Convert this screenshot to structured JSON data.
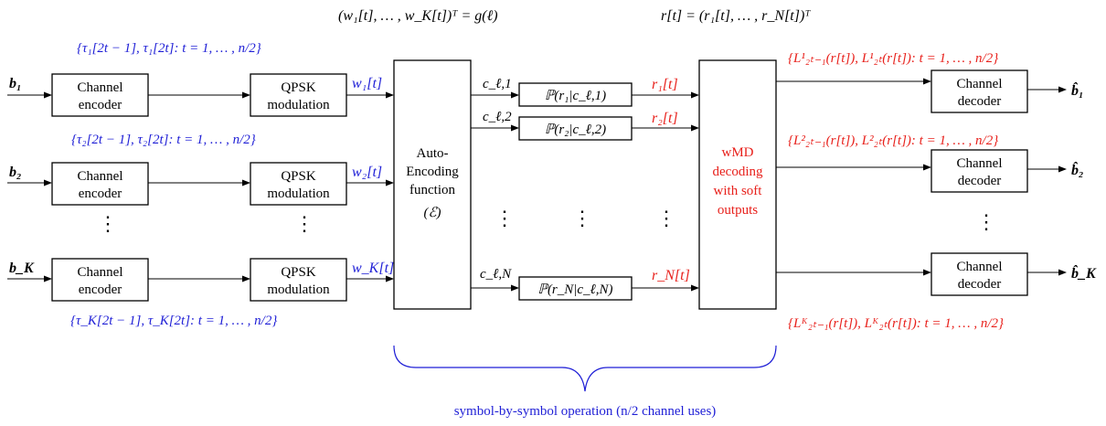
{
  "top_equations": {
    "g_eq": "(w₁[t], … , w_K[t])ᵀ = g(ℓ)",
    "r_eq": "r[t] = (r₁[t], … , r_N[t])ᵀ"
  },
  "inputs": [
    {
      "label": "b₁",
      "tau": "{τ₁[2t − 1], τ₁[2t]: t = 1, … , n/2}",
      "w": "w₁[t]"
    },
    {
      "label": "b₂",
      "tau": "{τ₂[2t − 1], τ₂[2t]: t = 1, … , n/2}",
      "w": "w₂[t]"
    },
    {
      "label": "b_K",
      "tau": "{τ_K[2t − 1], τ_K[2t]: t = 1, … , n/2}",
      "w": "w_K[t]"
    }
  ],
  "channel_encoder_label": [
    "Channel",
    "encoder"
  ],
  "qpsk_label": [
    "QPSK",
    "modulation"
  ],
  "auto_encoding_label": [
    "Auto-",
    "Encoding",
    "function",
    "(ℰ)"
  ],
  "codewords": [
    "c_ℓ,1",
    "c_ℓ,2",
    "c_ℓ,N"
  ],
  "channels": [
    "ℙ(r₁|c_ℓ,1)",
    "ℙ(r₂|c_ℓ,2)",
    "ℙ(r_N|c_ℓ,N)"
  ],
  "received": [
    "r₁[t]",
    "r₂[t]",
    "r_N[t]"
  ],
  "wmd_label": [
    "wMD",
    "decoding",
    "with soft",
    "outputs"
  ],
  "llr_sets": [
    "{L¹₂ₜ₋₁(r[t]), L¹₂ₜ(r[t]): t = 1, … , n/2}",
    "{L²₂ₜ₋₁(r[t]), L²₂ₜ(r[t]): t = 1, … , n/2}",
    "{Lᴷ₂ₜ₋₁(r[t]), Lᴷ₂ₜ(r[t]): t = 1, … , n/2}"
  ],
  "channel_decoder_label": [
    "Channel",
    "decoder"
  ],
  "outputs": [
    "b̂₁",
    "b̂₂",
    "b̂_K"
  ],
  "ellipsis": "⋮",
  "brace_caption": "symbol-by-symbol operation (n/2 channel uses)",
  "colors": {
    "blue": "#1f1fd6",
    "red": "#e8201b",
    "black": "#000000"
  }
}
